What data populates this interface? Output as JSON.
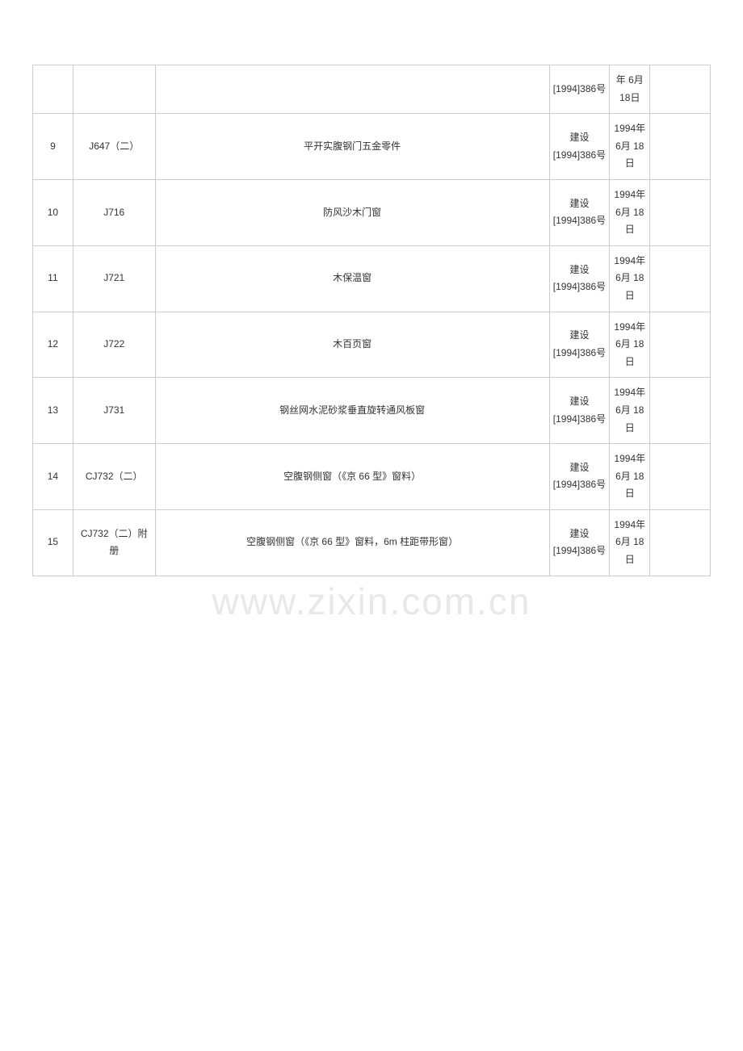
{
  "watermark": "www.zixin.com.cn",
  "columns": {
    "num_width": 48,
    "code_width": 98,
    "title_width": 470,
    "doc_width": 72,
    "date_width": 48,
    "last_width": 72
  },
  "colors": {
    "border": "#cccccc",
    "text": "#333333",
    "background": "#ffffff",
    "watermark": "#e8e8e8"
  },
  "rows": [
    {
      "num": "",
      "code": "",
      "title": "",
      "doc": "[1994]386号",
      "date": "年 6月 18日",
      "last": ""
    },
    {
      "num": "9",
      "code": "J647（二）",
      "title": "平开实腹钢门五金零件",
      "doc": "建设[1994]386号",
      "date": "1994年 6月 18日",
      "last": ""
    },
    {
      "num": "10",
      "code": "J716",
      "title": "防风沙木门窗",
      "doc": "建设[1994]386号",
      "date": "1994年 6月 18日",
      "last": ""
    },
    {
      "num": "11",
      "code": "J721",
      "title": "木保温窗",
      "doc": "建设[1994]386号",
      "date": "1994年 6月 18日",
      "last": ""
    },
    {
      "num": "12",
      "code": "J722",
      "title": "木百页窗",
      "doc": "建设[1994]386号",
      "date": "1994年 6月 18日",
      "last": ""
    },
    {
      "num": "13",
      "code": "J731",
      "title": "钢丝网水泥砂浆垂直旋转通风板窗",
      "doc": "建设[1994]386号",
      "date": "1994年 6月 18日",
      "last": ""
    },
    {
      "num": "14",
      "code": "CJ732（二）",
      "title": "空腹钢侧窗（《京 66 型》窗料）",
      "doc": "建设[1994]386号",
      "date": "1994年 6月 18日",
      "last": ""
    },
    {
      "num": "15",
      "code": "CJ732（二）附册",
      "title": "空腹钢侧窗（《京 66 型》窗料，6m 柱距带形窗）",
      "doc": "建设[1994]386号",
      "date": "1994年 6月 18日",
      "last": ""
    }
  ]
}
